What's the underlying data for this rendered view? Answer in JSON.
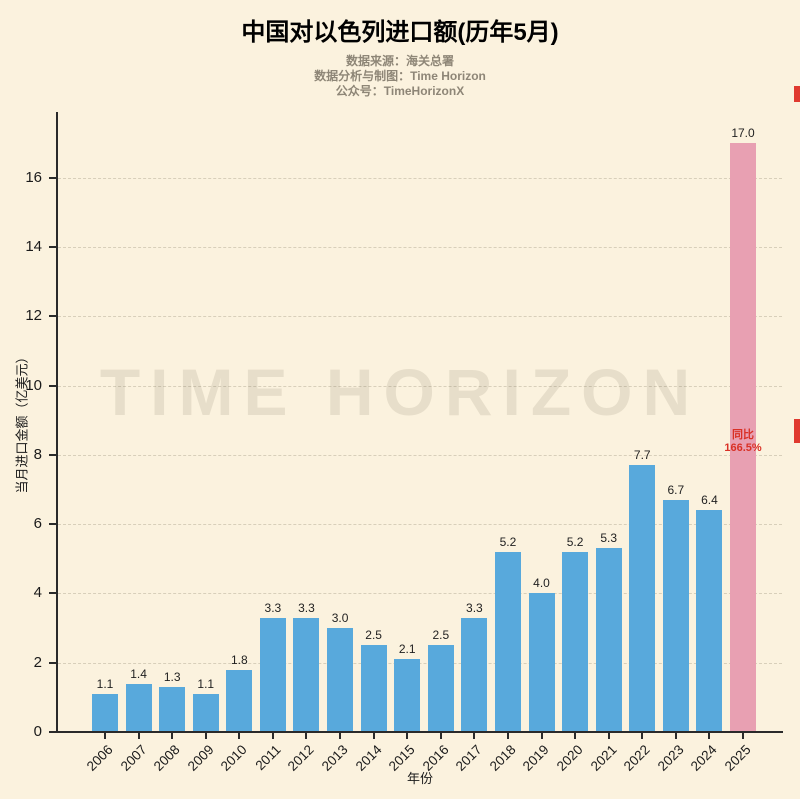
{
  "title": "中国对以色列进口额(历年5月)",
  "subtitles": [
    "数据来源：海关总署",
    "数据分析与制图：Time Horizon",
    "公众号：TimeHorizonX"
  ],
  "watermark": "TIME HORIZON",
  "annotation": {
    "line1": "同比",
    "line2": "166.5%"
  },
  "axes": {
    "x_label": "年份",
    "y_label": "当月进口金额（亿美元）"
  },
  "colors": {
    "background": "#fbf2de",
    "bar": "#58a9dc",
    "bar_highlight": "#e8a0b2",
    "annotation": "#d93025",
    "axis": "#2a2a2a"
  },
  "chart_data": {
    "type": "bar",
    "title": "中国对以色列进口额(历年5月)",
    "categories": [
      "2006",
      "2007",
      "2008",
      "2009",
      "2010",
      "2011",
      "2012",
      "2013",
      "2014",
      "2015",
      "2016",
      "2017",
      "2018",
      "2019",
      "2020",
      "2021",
      "2022",
      "2023",
      "2024",
      "2025"
    ],
    "values": [
      1.1,
      1.4,
      1.3,
      1.1,
      1.8,
      3.3,
      3.3,
      3.0,
      2.5,
      2.1,
      2.5,
      3.3,
      5.2,
      4.0,
      5.2,
      5.3,
      7.7,
      6.7,
      6.4,
      17.0
    ],
    "xlabel": "年份",
    "ylabel": "当月进口金额（亿美元）",
    "ylim": [
      0,
      17.9
    ],
    "yticks": [
      0,
      2,
      4,
      6,
      8,
      10,
      12,
      14,
      16
    ],
    "highlight_index": 19,
    "highlight_annotation": "同比 166.5%",
    "annotation_anchor_value": 8.75,
    "grid": true,
    "legend": "none",
    "value_labels": true
  }
}
